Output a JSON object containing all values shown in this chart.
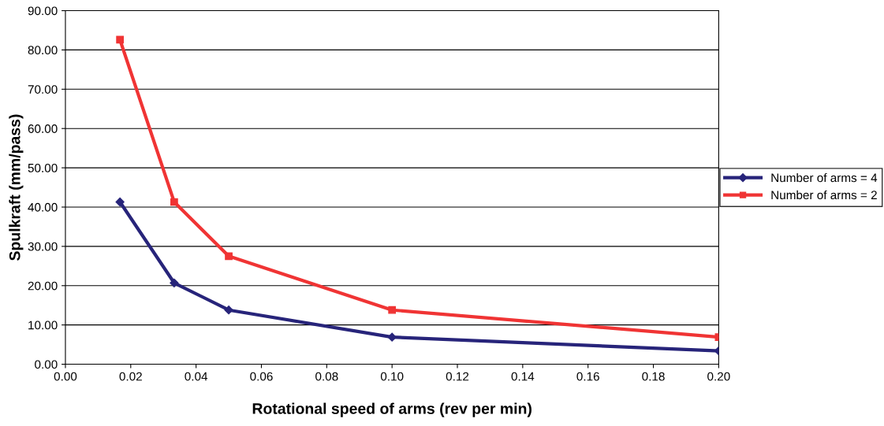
{
  "chart_data": {
    "type": "line",
    "xlabel": "Rotational speed of arms (rev per min)",
    "ylabel": "Spulkraft (mm/pass)",
    "x": [
      0.0167,
      0.0333,
      0.05,
      0.1,
      0.2
    ],
    "series": [
      {
        "name": "Number of arms = 4",
        "color": "#27247a",
        "marker": "diamond",
        "values": [
          41.3,
          20.7,
          13.8,
          6.9,
          3.4
        ]
      },
      {
        "name": "Number of arms = 2",
        "color": "#f03434",
        "marker": "square",
        "values": [
          82.6,
          41.3,
          27.5,
          13.8,
          6.9
        ]
      }
    ],
    "xlim": [
      0.0,
      0.2
    ],
    "xticks": [
      {
        "value": 0.0,
        "label": "0.00"
      },
      {
        "value": 0.02,
        "label": "0.02"
      },
      {
        "value": 0.04,
        "label": "0.04"
      },
      {
        "value": 0.06,
        "label": "0.06"
      },
      {
        "value": 0.08,
        "label": "0.08"
      },
      {
        "value": 0.1,
        "label": "0.10"
      },
      {
        "value": 0.12,
        "label": "0.12"
      },
      {
        "value": 0.14,
        "label": "0.14"
      },
      {
        "value": 0.16,
        "label": "0.16"
      },
      {
        "value": 0.18,
        "label": "0.18"
      },
      {
        "value": 0.2,
        "label": "0.20"
      }
    ],
    "ylim": [
      0,
      90
    ],
    "yticks": [
      {
        "value": 0,
        "label": "0.00"
      },
      {
        "value": 10,
        "label": "10.00"
      },
      {
        "value": 20,
        "label": "20.00"
      },
      {
        "value": 30,
        "label": "30.00"
      },
      {
        "value": 40,
        "label": "40.00"
      },
      {
        "value": 50,
        "label": "50.00"
      },
      {
        "value": 60,
        "label": "60.00"
      },
      {
        "value": 70,
        "label": "70.00"
      },
      {
        "value": 80,
        "label": "80.00"
      },
      {
        "value": 90,
        "label": "90.00"
      }
    ],
    "grid": "y",
    "legend": "right",
    "line_style": "solid"
  }
}
